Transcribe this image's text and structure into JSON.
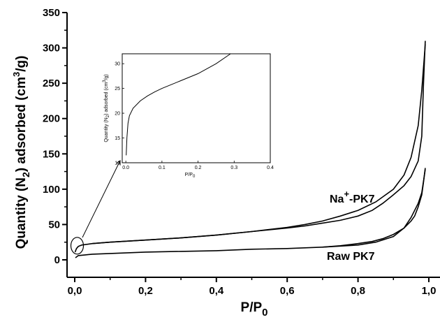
{
  "chart_data": [
    {
      "type": "line",
      "name": "main",
      "xlabel": {
        "base": "P/P",
        "sub": "0"
      },
      "ylabel": {
        "pre": "Quantity (N",
        "sub": "2",
        "mid": ")  adsorbed (cm",
        "sup": "3",
        "post": "/g)"
      },
      "xlim": [
        0,
        1
      ],
      "ylim": [
        0,
        350
      ],
      "x_ticks": [
        0,
        0.2,
        0.4,
        0.6,
        0.8,
        1.0
      ],
      "x_tick_labels": [
        "0,0",
        "0,2",
        "0,4",
        "0,6",
        "0,8",
        "1,0"
      ],
      "y_ticks": [
        0,
        50,
        100,
        150,
        200,
        250,
        300,
        350
      ],
      "y_tick_labels": [
        "0",
        "50",
        "100",
        "150",
        "200",
        "250",
        "300",
        "350"
      ],
      "grid": false,
      "series": [
        {
          "name": "Na+-PK7",
          "label": {
            "pre": "Na",
            "sup": "+",
            "post": "-PK7"
          },
          "adsorption": [
            [
              0.001,
              11
            ],
            [
              0.005,
              16
            ],
            [
              0.01,
              19
            ],
            [
              0.02,
              21
            ],
            [
              0.05,
              23
            ],
            [
              0.1,
              25
            ],
            [
              0.2,
              28
            ],
            [
              0.3,
              31
            ],
            [
              0.4,
              35
            ],
            [
              0.5,
              40
            ],
            [
              0.6,
              46
            ],
            [
              0.65,
              50
            ],
            [
              0.7,
              55
            ],
            [
              0.75,
              62
            ],
            [
              0.8,
              70
            ],
            [
              0.85,
              82
            ],
            [
              0.9,
              100
            ],
            [
              0.93,
              120
            ],
            [
              0.95,
              145
            ],
            [
              0.97,
              190
            ],
            [
              0.98,
              240
            ],
            [
              0.99,
              305
            ]
          ],
          "desorption": [
            [
              0.99,
              310
            ],
            [
              0.985,
              250
            ],
            [
              0.98,
              175
            ],
            [
              0.97,
              140
            ],
            [
              0.95,
              118
            ],
            [
              0.93,
              105
            ],
            [
              0.9,
              92
            ],
            [
              0.87,
              80
            ],
            [
              0.84,
              70
            ],
            [
              0.8,
              62
            ],
            [
              0.75,
              56
            ],
            [
              0.7,
              52
            ],
            [
              0.65,
              48
            ],
            [
              0.6,
              45
            ],
            [
              0.5,
              40
            ],
            [
              0.4,
              35
            ],
            [
              0.3,
              31
            ],
            [
              0.2,
              28
            ],
            [
              0.1,
              25
            ],
            [
              0.05,
              23
            ]
          ]
        },
        {
          "name": "Raw PK7",
          "label": {
            "pre": "Raw PK7",
            "sup": "",
            "post": ""
          },
          "adsorption": [
            [
              0.002,
              3
            ],
            [
              0.01,
              6
            ],
            [
              0.03,
              7
            ],
            [
              0.05,
              8
            ],
            [
              0.1,
              9
            ],
            [
              0.2,
              11
            ],
            [
              0.3,
              12
            ],
            [
              0.4,
              13
            ],
            [
              0.5,
              15
            ],
            [
              0.6,
              16
            ],
            [
              0.7,
              18
            ],
            [
              0.8,
              21
            ],
            [
              0.85,
              25
            ],
            [
              0.9,
              33
            ],
            [
              0.93,
              45
            ],
            [
              0.95,
              60
            ],
            [
              0.97,
              80
            ],
            [
              0.98,
              95
            ],
            [
              0.99,
              128
            ]
          ],
          "desorption": [
            [
              0.99,
              130
            ],
            [
              0.985,
              110
            ],
            [
              0.98,
              92
            ],
            [
              0.97,
              75
            ],
            [
              0.96,
              62
            ],
            [
              0.95,
              55
            ],
            [
              0.93,
              45
            ],
            [
              0.9,
              36
            ],
            [
              0.87,
              30
            ],
            [
              0.84,
              26
            ],
            [
              0.8,
              23
            ],
            [
              0.75,
              20
            ],
            [
              0.7,
              18
            ]
          ]
        }
      ],
      "annotations": [
        {
          "type": "ellipse",
          "x": 0.007,
          "y": 20
        }
      ]
    },
    {
      "type": "line",
      "name": "inset",
      "xlabel": {
        "base": "P/P",
        "sub": "0"
      },
      "ylabel": {
        "pre": "Quantity (N",
        "sub": "2",
        "mid": ") adsorbed (cm",
        "sup": "3",
        "post": "/g)"
      },
      "xlim": [
        -0.01,
        0.4
      ],
      "ylim": [
        10,
        32
      ],
      "x_ticks": [
        0,
        0.1,
        0.2,
        0.3,
        0.4
      ],
      "x_tick_labels": [
        "0.0",
        "0.1",
        "0.2",
        "0.3",
        "0.4"
      ],
      "y_ticks": [
        10,
        15,
        20,
        25,
        30
      ],
      "y_tick_labels": [
        "10",
        "15",
        "20",
        "25",
        "30"
      ],
      "grid": false,
      "series": [
        {
          "name": "Na+-PK7",
          "points": [
            [
              0.001,
              11.5
            ],
            [
              0.003,
              15
            ],
            [
              0.006,
              18
            ],
            [
              0.01,
              19.5
            ],
            [
              0.02,
              21
            ],
            [
              0.04,
              22.5
            ],
            [
              0.06,
              23.5
            ],
            [
              0.08,
              24.3
            ],
            [
              0.1,
              25
            ],
            [
              0.15,
              26.5
            ],
            [
              0.2,
              28
            ],
            [
              0.25,
              30
            ],
            [
              0.29,
              32
            ]
          ]
        }
      ]
    }
  ]
}
